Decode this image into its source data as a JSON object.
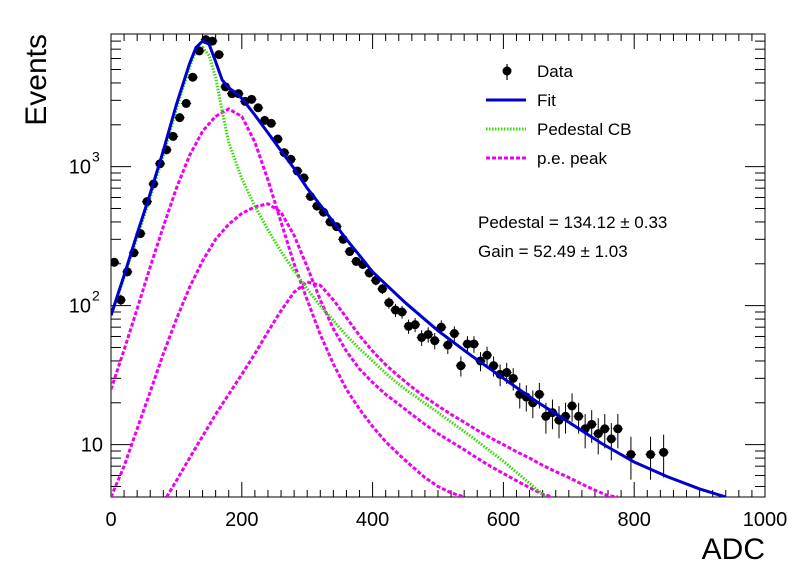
{
  "chart_data": {
    "type": "scatter",
    "xlabel": "ADC",
    "ylabel": "Events",
    "xlim": [
      0,
      1000
    ],
    "ylim": [
      4.2,
      9000
    ],
    "yscale": "log",
    "grid": false,
    "legend_position": "top-right",
    "x_ticks": [
      0,
      200,
      400,
      600,
      800,
      1000
    ],
    "x_tick_labels": [
      "0",
      "200",
      "400",
      "600",
      "800",
      "1000"
    ],
    "y_ticks": [
      10,
      100,
      1000
    ],
    "y_tick_labels": [
      "10",
      "10",
      "10"
    ],
    "y_tick_exponents": [
      "",
      "2",
      "3"
    ],
    "legend": [
      {
        "name": "Data",
        "style": "marker",
        "color": "#000000"
      },
      {
        "name": "Fit",
        "style": "solid",
        "color": "#0000cc"
      },
      {
        "name": "Pedestal CB",
        "style": "dotted",
        "color": "#33dd00"
      },
      {
        "name": "p.e. peak",
        "style": "dashed",
        "color": "#ee00ee"
      }
    ],
    "annotations": [
      "Pedestal = 134.12 ± 0.33",
      "Gain = 52.49 ± 1.03"
    ],
    "data": {
      "name": "Data",
      "x": [
        5,
        15,
        25,
        35,
        45,
        55,
        65,
        75,
        85,
        95,
        105,
        115,
        125,
        135,
        145,
        155,
        165,
        175,
        185,
        195,
        205,
        215,
        225,
        235,
        245,
        255,
        265,
        275,
        285,
        295,
        305,
        315,
        325,
        335,
        345,
        355,
        365,
        375,
        385,
        395,
        405,
        415,
        425,
        435,
        445,
        455,
        465,
        475,
        485,
        495,
        505,
        515,
        525,
        535,
        545,
        555,
        565,
        575,
        585,
        595,
        605,
        615,
        625,
        635,
        645,
        655,
        665,
        675,
        685,
        695,
        705,
        715,
        725,
        735,
        745,
        755,
        765,
        775,
        795,
        825,
        845
      ],
      "y": [
        205,
        110,
        175,
        240,
        330,
        560,
        750,
        1050,
        1320,
        1650,
        2250,
        2850,
        4400,
        6800,
        8200,
        8000,
        6400,
        3750,
        3350,
        3350,
        2950,
        3050,
        2650,
        2150,
        2050,
        1580,
        1260,
        1130,
        930,
        830,
        610,
        520,
        470,
        400,
        370,
        300,
        245,
        208,
        198,
        172,
        152,
        132,
        105,
        93,
        90,
        71,
        73,
        59,
        62,
        56,
        70,
        52,
        63,
        37,
        53,
        53,
        40,
        44,
        37,
        32,
        33,
        30,
        23,
        22,
        20,
        23,
        16,
        17,
        15,
        16,
        19,
        16,
        13,
        14,
        12,
        13,
        11,
        13,
        8.5,
        8.5,
        8.8
      ],
      "err": [
        14,
        10,
        13,
        15,
        18,
        24,
        27,
        32,
        36,
        41,
        47,
        53,
        66,
        82,
        91,
        89,
        80,
        61,
        58,
        58,
        54,
        55,
        51,
        46,
        45,
        40,
        35,
        34,
        30,
        29,
        25,
        23,
        22,
        20,
        19,
        17,
        16,
        14,
        14,
        13,
        12,
        11,
        10,
        10,
        9.5,
        8.4,
        8.5,
        7.7,
        7.9,
        7.5,
        8.4,
        7.2,
        7.9,
        6.1,
        7.3,
        7.3,
        6.3,
        6.6,
        6.1,
        5.7,
        5.7,
        5.5,
        4.8,
        4.7,
        4.5,
        4.8,
        4,
        4.1,
        3.9,
        4,
        4.4,
        4,
        3.6,
        3.7,
        3.5,
        3.6,
        3.3,
        3.6,
        2.9,
        2.9,
        3
      ]
    },
    "fit": {
      "name": "Fit",
      "x": [
        0,
        20,
        40,
        60,
        80,
        100,
        120,
        130,
        140,
        150,
        160,
        170,
        180,
        190,
        200,
        220,
        240,
        260,
        280,
        300,
        320,
        340,
        360,
        380,
        400,
        450,
        500,
        550,
        600,
        650,
        700,
        750,
        800,
        850,
        900,
        940
      ],
      "y": [
        85,
        165,
        330,
        640,
        1300,
        2800,
        5500,
        7200,
        8000,
        7600,
        5700,
        4200,
        3700,
        3400,
        3100,
        2350,
        1750,
        1300,
        970,
        700,
        530,
        400,
        300,
        230,
        175,
        105,
        66,
        44,
        30,
        20.5,
        14.5,
        10.2,
        7.5,
        5.9,
        4.8,
        4.2
      ]
    },
    "pedestal_cb": {
      "name": "Pedestal CB",
      "x": [
        0,
        20,
        40,
        60,
        80,
        100,
        120,
        130,
        140,
        150,
        160,
        170,
        180,
        200,
        220,
        240,
        260,
        280,
        300,
        320,
        340,
        360,
        380,
        400,
        425,
        450,
        500,
        550,
        600,
        650,
        665
      ],
      "y": [
        85,
        160,
        310,
        600,
        1200,
        2600,
        5200,
        6800,
        7200,
        6300,
        4400,
        2500,
        1500,
        820,
        520,
        350,
        245,
        178,
        132,
        100,
        78,
        61,
        49,
        40,
        31,
        25,
        17,
        11.5,
        7.6,
        4.8,
        4.2
      ]
    },
    "pe_peaks": [
      {
        "name": "p.e. peak",
        "x": [
          0,
          20,
          40,
          60,
          80,
          100,
          120,
          140,
          160,
          180,
          200,
          220,
          240,
          260,
          280,
          300,
          320,
          340,
          360,
          380,
          400,
          420,
          440,
          460,
          480,
          500,
          520,
          540
        ],
        "y": [
          25,
          48,
          95,
          190,
          370,
          700,
          1200,
          1800,
          2300,
          2600,
          2300,
          1500,
          800,
          400,
          200,
          110,
          62,
          38,
          25,
          18,
          13.5,
          10.5,
          8.5,
          7,
          5.8,
          5,
          4.5,
          4.2
        ]
      },
      {
        "name": "p.e. peak",
        "x": [
          0,
          20,
          40,
          60,
          80,
          100,
          120,
          140,
          160,
          180,
          200,
          220,
          240,
          260,
          280,
          300,
          320,
          340,
          360,
          380,
          400,
          420,
          440,
          460,
          480,
          500,
          520,
          540,
          560,
          580,
          600,
          620,
          640,
          660,
          675
        ],
        "y": [
          4.2,
          7,
          13,
          24,
          45,
          80,
          135,
          210,
          300,
          385,
          460,
          515,
          540,
          470,
          320,
          190,
          110,
          68,
          47,
          35,
          28,
          23,
          19.5,
          16.5,
          14,
          12,
          10.5,
          9.2,
          8,
          7,
          6.2,
          5.5,
          4.9,
          4.4,
          4.2
        ]
      },
      {
        "name": "p.e. peak",
        "x": [
          85,
          100,
          120,
          140,
          160,
          180,
          200,
          220,
          240,
          260,
          280,
          300,
          320,
          340,
          360,
          380,
          400,
          420,
          440,
          460,
          480,
          500,
          520,
          540,
          560,
          580,
          600,
          620,
          640,
          660,
          680,
          700,
          720,
          740,
          760,
          775
        ],
        "y": [
          4.2,
          5.5,
          8,
          11.5,
          16.5,
          23,
          32,
          45,
          65,
          92,
          125,
          148,
          140,
          110,
          82,
          61,
          47,
          37.5,
          31,
          26,
          22,
          19,
          16.5,
          14.5,
          12.7,
          11.2,
          10,
          8.9,
          8,
          7.1,
          6.4,
          5.8,
          5.2,
          4.7,
          4.3,
          4.2
        ]
      }
    ]
  }
}
